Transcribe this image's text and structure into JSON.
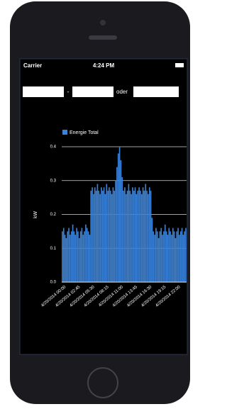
{
  "status_bar": {
    "carrier": "Carrier",
    "time": "4:24 PM"
  },
  "form": {
    "separator": "-",
    "or_label": "oder"
  },
  "chart_data": {
    "type": "bar",
    "y_label": "kW",
    "categories": [
      "4/20/2014 00:00",
      null,
      null,
      null,
      null,
      null,
      null,
      null,
      null,
      null,
      null,
      "4/20/2014 02:45",
      null,
      null,
      null,
      null,
      null,
      null,
      null,
      null,
      null,
      null,
      "4/20/2014 05:30",
      null,
      null,
      null,
      null,
      null,
      null,
      null,
      null,
      null,
      null,
      "4/20/2014 08:15",
      null,
      null,
      null,
      null,
      null,
      null,
      null,
      null,
      null,
      null,
      "4/20/2014 11:00",
      null,
      null,
      null,
      null,
      null,
      null,
      null,
      null,
      null,
      null,
      "4/20/2014 13:45",
      null,
      null,
      null,
      null,
      null,
      null,
      null,
      null,
      null,
      null,
      "4/20/2014 16:30",
      null,
      null,
      null,
      null,
      null,
      null,
      null,
      null,
      null,
      null,
      "4/20/2014 19:15",
      null,
      null,
      null,
      null,
      null,
      null,
      null,
      null,
      null,
      null,
      "4/20/2014 22:00",
      null,
      null,
      null,
      null,
      null,
      null,
      null
    ],
    "series": [
      {
        "name": "Energie Total",
        "color": "#3b82d6",
        "values": [
          0.15,
          0.16,
          0.14,
          0.13,
          0.15,
          0.16,
          0.14,
          0.15,
          0.17,
          0.15,
          0.14,
          0.16,
          0.15,
          0.13,
          0.15,
          0.16,
          0.14,
          0.15,
          0.17,
          0.16,
          0.15,
          0.14,
          0.27,
          0.28,
          0.26,
          0.28,
          0.27,
          0.29,
          0.27,
          0.26,
          0.28,
          0.27,
          0.28,
          0.26,
          0.29,
          0.27,
          0.28,
          0.27,
          0.26,
          0.28,
          0.27,
          0.3,
          0.34,
          0.38,
          0.4,
          0.36,
          0.31,
          0.27,
          0.28,
          0.26,
          0.27,
          0.29,
          0.27,
          0.26,
          0.28,
          0.27,
          0.28,
          0.26,
          0.27,
          0.28,
          0.27,
          0.26,
          0.28,
          0.27,
          0.29,
          0.27,
          0.26,
          0.28,
          0.27,
          0.19,
          0.15,
          0.14,
          0.16,
          0.15,
          0.13,
          0.15,
          0.16,
          0.14,
          0.15,
          0.17,
          0.15,
          0.14,
          0.16,
          0.15,
          0.14,
          0.16,
          0.15,
          0.13,
          0.15,
          0.16,
          0.14,
          0.15,
          0.16,
          0.14,
          0.15,
          0.16
        ]
      }
    ],
    "ylim": [
      0,
      0.4
    ],
    "yticks": [
      {
        "value": 0,
        "label": "0.0"
      },
      0.1,
      0.2,
      0.3,
      0.4
    ],
    "grid": true,
    "legend": "top-left"
  }
}
